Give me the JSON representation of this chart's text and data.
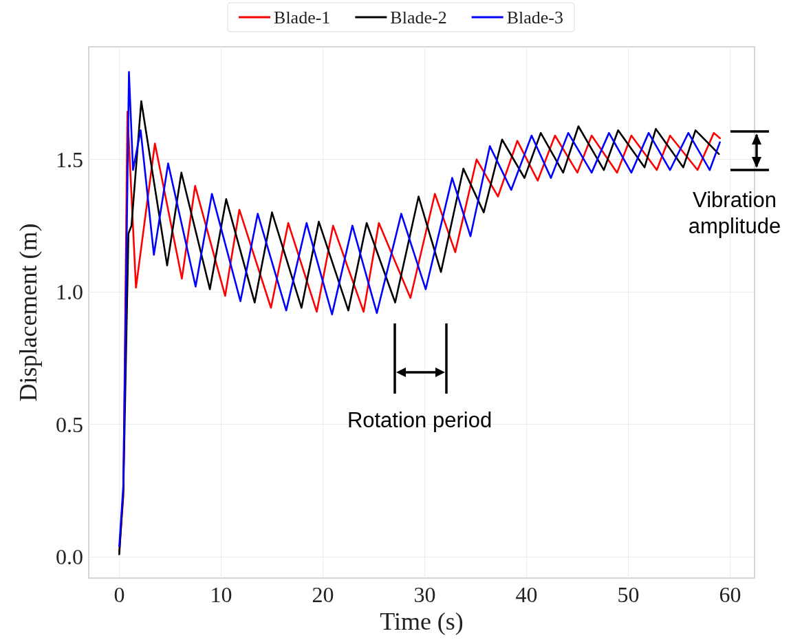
{
  "chart_data": {
    "type": "line",
    "xlabel": "Time (s)",
    "ylabel": "Displacement (m)",
    "xlim": [
      -3,
      62.4
    ],
    "ylim": [
      -0.08,
      1.925
    ],
    "xticks": [
      0,
      10,
      20,
      30,
      40,
      50,
      60
    ],
    "yticks": [
      {
        "value": 0,
        "label": "0.0"
      },
      0.5,
      {
        "value": 1,
        "label": "1.0"
      },
      1.5
    ],
    "grid": true,
    "legend": "top",
    "marker": "none",
    "line_style": "solid",
    "annotations": [
      "Rotation period",
      "Vibration amplitude"
    ],
    "series": [
      {
        "name": "Blade-1",
        "color": "#ff0000",
        "x": [
          0,
          0.4,
          0.8,
          1.64,
          3.5,
          6.15,
          7.45,
          10.4,
          11.8,
          14.9,
          16.6,
          19.4,
          21.0,
          24.0,
          25.5,
          28.6,
          31.0,
          33.0,
          35.1,
          37.2,
          39.1,
          41.1,
          42.8,
          45.0,
          46.4,
          48.9,
          50.3,
          52.8,
          54.1,
          56.8,
          58.4,
          59.0
        ],
        "values": [
          0.02,
          0.23,
          1.68,
          1.016,
          1.56,
          1.05,
          1.4,
          0.985,
          1.31,
          0.94,
          1.26,
          0.925,
          1.25,
          0.925,
          1.26,
          0.977,
          1.37,
          1.15,
          1.5,
          1.36,
          1.57,
          1.42,
          1.59,
          1.45,
          1.59,
          1.45,
          1.59,
          1.46,
          1.59,
          1.46,
          1.6,
          1.58
        ]
      },
      {
        "name": "Blade-2",
        "color": "#000000",
        "x": [
          0,
          0.4,
          0.9,
          1.2,
          2.16,
          4.7,
          6.1,
          8.9,
          10.5,
          13.3,
          15.0,
          17.9,
          19.6,
          22.5,
          24.3,
          27.1,
          29.4,
          31.6,
          33.8,
          35.8,
          37.6,
          39.8,
          41.4,
          43.6,
          45.1,
          47.6,
          49.0,
          51.6,
          52.7,
          55.4,
          56.6,
          58.9
        ],
        "values": [
          0.01,
          0.25,
          1.22,
          1.25,
          1.72,
          1.1,
          1.45,
          1.01,
          1.35,
          0.96,
          1.3,
          0.94,
          1.265,
          0.93,
          1.26,
          0.96,
          1.36,
          1.075,
          1.465,
          1.3,
          1.575,
          1.43,
          1.6,
          1.45,
          1.625,
          1.46,
          1.61,
          1.47,
          1.615,
          1.47,
          1.61,
          1.52
        ]
      },
      {
        "name": "Blade-3",
        "color": "#0000ff",
        "x": [
          0,
          0.4,
          0.95,
          1.35,
          2.1,
          3.4,
          4.8,
          7.5,
          9.1,
          11.9,
          13.6,
          16.4,
          18.4,
          20.9,
          22.9,
          25.3,
          27.7,
          30.1,
          32.7,
          34.5,
          36.4,
          38.5,
          40.5,
          42.4,
          44.1,
          46.4,
          48.1,
          50.3,
          52.0,
          54.1,
          55.9,
          58.0,
          59.0
        ],
        "values": [
          0.04,
          0.27,
          1.83,
          1.46,
          1.61,
          1.14,
          1.485,
          1.02,
          1.37,
          0.965,
          1.295,
          0.93,
          1.26,
          0.915,
          1.25,
          0.92,
          1.295,
          1.01,
          1.43,
          1.21,
          1.55,
          1.385,
          1.59,
          1.43,
          1.6,
          1.45,
          1.6,
          1.45,
          1.6,
          1.46,
          1.6,
          1.46,
          1.565
        ]
      }
    ]
  }
}
